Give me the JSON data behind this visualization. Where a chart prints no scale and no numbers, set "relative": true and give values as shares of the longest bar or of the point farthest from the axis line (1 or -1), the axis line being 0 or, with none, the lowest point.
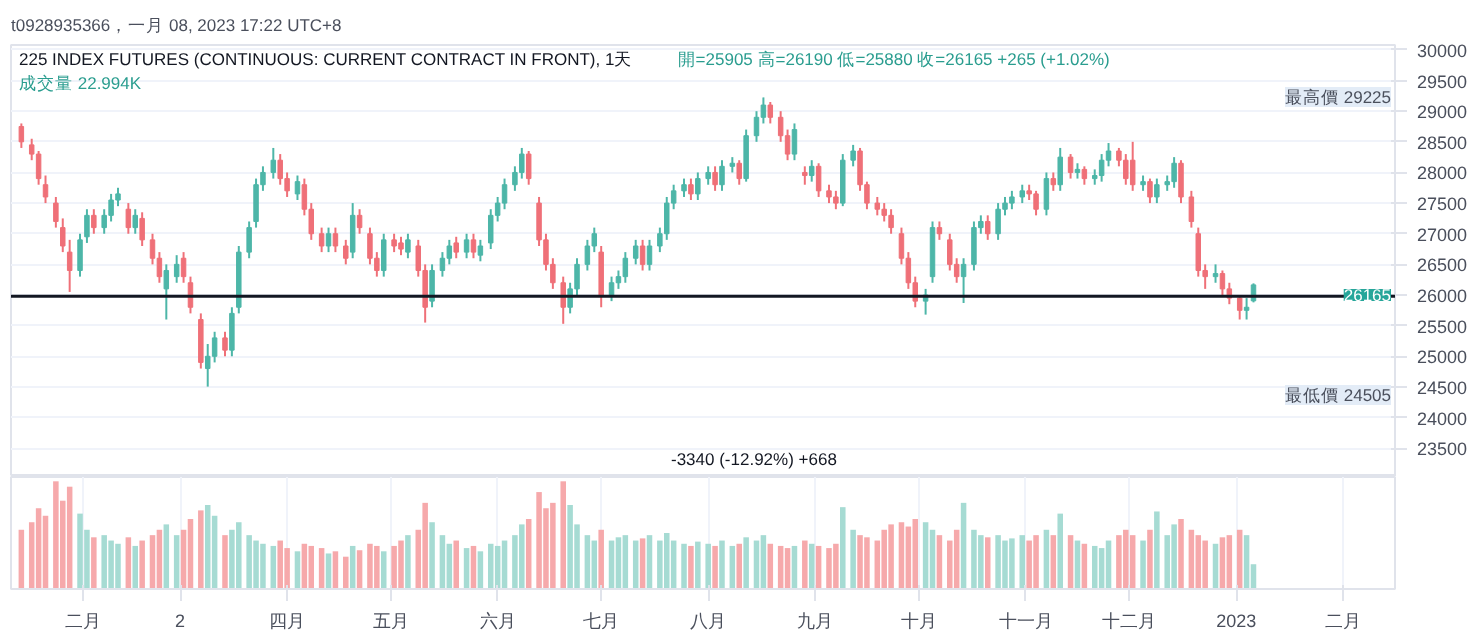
{
  "chart_data": [
    {
      "type": "candlestick",
      "title": "225 INDEX FUTURES (CONTINUOUS: CURRENT CONTRACT IN FRONT), 1天",
      "subtitle": "開=25905 高=26190 低=25880 收=26165 +265 (+1.02%)",
      "annotations": [
        "t0928935366，一月 08, 2023 17:22 UTC+8",
        "成交量 22.994K",
        "最高價 29225",
        "最低價 24505",
        "26165",
        "-3340 (-12.92%) +668"
      ],
      "x": [
        "2022-01-14",
        "2022-01-17",
        "2022-01-19",
        "2022-01-21",
        "2022-01-24",
        "2022-01-26",
        "2022-01-28",
        "2022-01-31",
        "2022-02-02",
        "2022-02-04",
        "2022-02-07",
        "2022-02-09",
        "2022-02-11",
        "2022-02-14",
        "2022-02-16",
        "2022-02-18",
        "2022-02-21",
        "2022-02-23",
        "2022-02-25",
        "2022-02-28",
        "2022-03-02",
        "2022-03-04",
        "2022-03-07",
        "2022-03-09",
        "2022-03-11",
        "2022-03-14",
        "2022-03-16",
        "2022-03-18",
        "2022-03-21",
        "2022-03-23",
        "2022-03-25",
        "2022-03-28",
        "2022-03-30",
        "2022-04-01",
        "2022-04-04",
        "2022-04-06",
        "2022-04-08",
        "2022-04-11",
        "2022-04-13",
        "2022-04-15",
        "2022-04-18",
        "2022-04-20",
        "2022-04-22",
        "2022-04-25",
        "2022-04-27",
        "2022-04-29",
        "2022-05-02",
        "2022-05-04",
        "2022-05-06",
        "2022-05-09",
        "2022-05-11",
        "2022-05-13",
        "2022-05-16",
        "2022-05-18",
        "2022-05-20",
        "2022-05-23",
        "2022-05-25",
        "2022-05-27",
        "2022-05-30",
        "2022-06-01",
        "2022-06-03",
        "2022-06-06",
        "2022-06-08",
        "2022-06-10",
        "2022-06-13",
        "2022-06-15",
        "2022-06-17",
        "2022-06-20",
        "2022-06-22",
        "2022-06-24",
        "2022-06-27",
        "2022-06-29",
        "2022-07-01",
        "2022-07-04",
        "2022-07-06",
        "2022-07-08",
        "2022-07-11",
        "2022-07-13",
        "2022-07-15",
        "2022-07-18",
        "2022-07-20",
        "2022-07-22",
        "2022-07-25",
        "2022-07-27",
        "2022-07-29",
        "2022-08-01",
        "2022-08-03",
        "2022-08-05",
        "2022-08-08",
        "2022-08-10",
        "2022-08-12",
        "2022-08-15",
        "2022-08-17",
        "2022-08-19",
        "2022-08-22",
        "2022-08-24",
        "2022-08-26",
        "2022-08-29",
        "2022-08-31",
        "2022-09-02",
        "2022-09-05",
        "2022-09-07",
        "2022-09-09",
        "2022-09-12",
        "2022-09-14",
        "2022-09-16",
        "2022-09-19",
        "2022-09-21",
        "2022-09-23",
        "2022-09-26",
        "2022-09-28",
        "2022-09-30",
        "2022-10-03",
        "2022-10-05",
        "2022-10-07",
        "2022-10-10",
        "2022-10-12",
        "2022-10-14",
        "2022-10-17",
        "2022-10-19",
        "2022-10-21",
        "2022-10-24",
        "2022-10-26",
        "2022-10-28",
        "2022-10-31",
        "2022-11-02",
        "2022-11-04",
        "2022-11-07",
        "2022-11-09",
        "2022-11-11",
        "2022-11-14",
        "2022-11-16",
        "2022-11-18",
        "2022-11-21",
        "2022-11-23",
        "2022-11-25",
        "2022-11-28",
        "2022-11-30",
        "2022-12-02",
        "2022-12-05",
        "2022-12-07",
        "2022-12-09",
        "2022-12-12",
        "2022-12-14",
        "2022-12-16",
        "2022-12-19",
        "2022-12-21",
        "2022-12-23",
        "2022-12-26",
        "2022-12-28",
        "2022-12-30",
        "2023-01-02",
        "2023-01-04",
        "2023-01-06"
      ],
      "xlim": [
        "2022-01-11",
        "2023-02-16"
      ],
      "ylim": [
        23030,
        30080
      ],
      "yticks": [
        23500,
        24000,
        24500,
        25000,
        25500,
        26000,
        26500,
        27000,
        27500,
        28000,
        28500,
        29000,
        29500,
        30000
      ],
      "grid": "y",
      "tick_labels": "y",
      "ref_lines": [
        {
          "axis": "y",
          "value": 25980,
          "color": "#131722"
        }
      ],
      "ohlc": [
        [
          28750,
          28800,
          28400,
          28500
        ],
        [
          28450,
          28550,
          28200,
          28300
        ],
        [
          28300,
          28350,
          27800,
          27900
        ],
        [
          27800,
          27950,
          27500,
          27600
        ],
        [
          27500,
          27600,
          27100,
          27200
        ],
        [
          27100,
          27250,
          26700,
          26800
        ],
        [
          26700,
          26900,
          26050,
          26400
        ],
        [
          26400,
          27000,
          26300,
          26900
        ],
        [
          26950,
          27400,
          26850,
          27300
        ],
        [
          27300,
          27400,
          27000,
          27100
        ],
        [
          27100,
          27400,
          27000,
          27300
        ],
        [
          27300,
          27650,
          27200,
          27550
        ],
        [
          27550,
          27750,
          27450,
          27650
        ],
        [
          27400,
          27500,
          27000,
          27100
        ],
        [
          27100,
          27400,
          27000,
          27300
        ],
        [
          27250,
          27350,
          26800,
          26900
        ],
        [
          26900,
          27000,
          26500,
          26600
        ],
        [
          26600,
          26700,
          26200,
          26300
        ],
        [
          26100,
          26500,
          25600,
          26400
        ],
        [
          26300,
          26650,
          26200,
          26500
        ],
        [
          26600,
          26700,
          26200,
          26300
        ],
        [
          26200,
          26300,
          25700,
          25800
        ],
        [
          25600,
          25700,
          24800,
          24900
        ],
        [
          24800,
          25200,
          24505,
          25000
        ],
        [
          25000,
          25400,
          24900,
          25300
        ],
        [
          25300,
          25400,
          25000,
          25100
        ],
        [
          25100,
          25800,
          25000,
          25700
        ],
        [
          25800,
          26800,
          25700,
          26700
        ],
        [
          26700,
          27200,
          26600,
          27100
        ],
        [
          27200,
          27900,
          27100,
          27800
        ],
        [
          27800,
          28100,
          27700,
          28000
        ],
        [
          28000,
          28400,
          27900,
          28200
        ],
        [
          28200,
          28300,
          27800,
          27900
        ],
        [
          27900,
          28000,
          27600,
          27700
        ],
        [
          27650,
          27950,
          27550,
          27850
        ],
        [
          27800,
          27900,
          27300,
          27400
        ],
        [
          27400,
          27500,
          26900,
          27000
        ],
        [
          27000,
          27100,
          26700,
          26800
        ],
        [
          26800,
          27100,
          26700,
          27000
        ],
        [
          27000,
          27100,
          26700,
          26800
        ],
        [
          26800,
          26900,
          26500,
          26600
        ],
        [
          26700,
          27500,
          26600,
          27300
        ],
        [
          27300,
          27400,
          27000,
          27100
        ],
        [
          27000,
          27100,
          26500,
          26600
        ],
        [
          26600,
          26700,
          26300,
          26400
        ],
        [
          26400,
          27000,
          26300,
          26900
        ],
        [
          26900,
          27000,
          26700,
          26800
        ],
        [
          26850,
          26950,
          26650,
          26750
        ],
        [
          26700,
          27000,
          26600,
          26900
        ],
        [
          26800,
          26900,
          26300,
          26400
        ],
        [
          26400,
          26500,
          25550,
          25800
        ],
        [
          25900,
          26500,
          25800,
          26400
        ],
        [
          26400,
          26700,
          26300,
          26600
        ],
        [
          26600,
          26900,
          26500,
          26800
        ],
        [
          26850,
          26950,
          26600,
          26700
        ],
        [
          26700,
          27000,
          26600,
          26900
        ],
        [
          26900,
          27000,
          26600,
          26700
        ],
        [
          26650,
          26900,
          26550,
          26800
        ],
        [
          26850,
          27400,
          26750,
          27300
        ],
        [
          27300,
          27600,
          27200,
          27500
        ],
        [
          27500,
          27900,
          27400,
          27800
        ],
        [
          27800,
          28100,
          27700,
          28000
        ],
        [
          28000,
          28400,
          27900,
          28300
        ],
        [
          28300,
          28350,
          27800,
          27900
        ],
        [
          27500,
          27600,
          26800,
          26900
        ],
        [
          26900,
          27000,
          26400,
          26500
        ],
        [
          26500,
          26600,
          26100,
          26200
        ],
        [
          26200,
          26300,
          25530,
          25800
        ],
        [
          25800,
          26200,
          25700,
          26100
        ],
        [
          26100,
          26600,
          26000,
          26500
        ],
        [
          26500,
          26900,
          26400,
          26800
        ],
        [
          26800,
          27100,
          26700,
          27000
        ],
        [
          26700,
          26800,
          25800,
          26000
        ],
        [
          26000,
          26300,
          25900,
          26200
        ],
        [
          26200,
          26400,
          26100,
          26300
        ],
        [
          26300,
          26700,
          26200,
          26600
        ],
        [
          26600,
          26900,
          26500,
          26800
        ],
        [
          26800,
          26900,
          26400,
          26500
        ],
        [
          26500,
          26900,
          26400,
          26800
        ],
        [
          26800,
          27100,
          26700,
          27000
        ],
        [
          27000,
          27600,
          26900,
          27500
        ],
        [
          27500,
          27800,
          27400,
          27700
        ],
        [
          27700,
          27900,
          27600,
          27800
        ],
        [
          27800,
          27900,
          27550,
          27650
        ],
        [
          27650,
          28000,
          27550,
          27900
        ],
        [
          27900,
          28100,
          27800,
          28000
        ],
        [
          28000,
          28100,
          27700,
          27800
        ],
        [
          27800,
          28200,
          27700,
          28100
        ],
        [
          28100,
          28250,
          28000,
          28150
        ],
        [
          28150,
          28200,
          27800,
          27900
        ],
        [
          27900,
          28700,
          27850,
          28600
        ],
        [
          28600,
          29000,
          28500,
          28900
        ],
        [
          28900,
          29225,
          28800,
          29100
        ],
        [
          29100,
          29150,
          28800,
          28900
        ],
        [
          28900,
          29000,
          28500,
          28600
        ],
        [
          28600,
          28700,
          28200,
          28300
        ],
        [
          28300,
          28800,
          28200,
          28700
        ],
        [
          28000,
          28100,
          27800,
          27950
        ],
        [
          27950,
          28200,
          27850,
          28100
        ],
        [
          28100,
          28150,
          27600,
          27700
        ],
        [
          27700,
          27800,
          27500,
          27600
        ],
        [
          27600,
          27700,
          27400,
          27500
        ],
        [
          27500,
          28300,
          27450,
          28200
        ],
        [
          28200,
          28450,
          28100,
          28350
        ],
        [
          28350,
          28400,
          27700,
          27800
        ],
        [
          27800,
          27850,
          27400,
          27500
        ],
        [
          27500,
          27600,
          27300,
          27400
        ],
        [
          27400,
          27500,
          27200,
          27300
        ],
        [
          27300,
          27400,
          27000,
          27100
        ],
        [
          27000,
          27100,
          26500,
          26600
        ],
        [
          26600,
          26700,
          26100,
          26200
        ],
        [
          26200,
          26300,
          25800,
          25900
        ],
        [
          25900,
          26100,
          25680,
          26000
        ],
        [
          26300,
          27200,
          26200,
          27100
        ],
        [
          27100,
          27200,
          26900,
          27000
        ],
        [
          26900,
          27000,
          26400,
          26500
        ],
        [
          26500,
          26600,
          26200,
          26300
        ],
        [
          26300,
          26600,
          25870,
          26500
        ],
        [
          26500,
          27200,
          26400,
          27100
        ],
        [
          27100,
          27300,
          27000,
          27200
        ],
        [
          27200,
          27300,
          26900,
          27000
        ],
        [
          27000,
          27500,
          26900,
          27400
        ],
        [
          27400,
          27600,
          27300,
          27500
        ],
        [
          27500,
          27700,
          27400,
          27600
        ],
        [
          27600,
          27800,
          27500,
          27700
        ],
        [
          27700,
          27800,
          27550,
          27650
        ],
        [
          27650,
          27700,
          27300,
          27400
        ],
        [
          27400,
          28000,
          27300,
          27900
        ],
        [
          27900,
          28000,
          27700,
          27800
        ],
        [
          27800,
          28400,
          27700,
          28250
        ],
        [
          28250,
          28300,
          27900,
          28000
        ],
        [
          28000,
          28150,
          27900,
          28050
        ],
        [
          28050,
          28100,
          27800,
          27900
        ],
        [
          27900,
          28050,
          27800,
          27950
        ],
        [
          27950,
          28300,
          27850,
          28200
        ],
        [
          28200,
          28480,
          28100,
          28350
        ],
        [
          28350,
          28400,
          28100,
          28200
        ],
        [
          28200,
          28300,
          27800,
          27900
        ],
        [
          28200,
          28500,
          27700,
          27800
        ],
        [
          27800,
          27950,
          27700,
          27850
        ],
        [
          27850,
          27900,
          27500,
          27600
        ],
        [
          27600,
          27900,
          27500,
          27800
        ],
        [
          27800,
          27950,
          27700,
          27850
        ],
        [
          27850,
          28250,
          27750,
          28150
        ],
        [
          28150,
          28200,
          27500,
          27600
        ],
        [
          27600,
          27700,
          27100,
          27200
        ],
        [
          27000,
          27100,
          26300,
          26400
        ],
        [
          26400,
          26500,
          26100,
          26300
        ],
        [
          26300,
          26500,
          26200,
          26350
        ],
        [
          26350,
          26400,
          26000,
          26100
        ],
        [
          26100,
          26200,
          25850,
          25950
        ],
        [
          25950,
          26000,
          25600,
          25750
        ],
        [
          25750,
          25950,
          25600,
          25800
        ],
        [
          25905,
          26190,
          25880,
          26165
        ]
      ],
      "colors": [
        "#ef7078",
        "#ef7078",
        "#ef7078",
        "#ef7078",
        "#ef7078",
        "#ef7078",
        "#ef7078",
        "#4db6a8",
        "#4db6a8",
        "#ef7078",
        "#4db6a8",
        "#4db6a8",
        "#4db6a8",
        "#ef7078",
        "#4db6a8",
        "#ef7078",
        "#ef7078",
        "#ef7078",
        "#4db6a8",
        "#4db6a8",
        "#ef7078",
        "#ef7078",
        "#ef7078",
        "#4db6a8",
        "#4db6a8",
        "#ef7078",
        "#4db6a8",
        "#4db6a8",
        "#4db6a8",
        "#4db6a8",
        "#4db6a8",
        "#4db6a8",
        "#ef7078",
        "#ef7078",
        "#4db6a8",
        "#ef7078",
        "#ef7078",
        "#ef7078",
        "#4db6a8",
        "#ef7078",
        "#ef7078",
        "#4db6a8",
        "#ef7078",
        "#ef7078",
        "#ef7078",
        "#4db6a8",
        "#ef7078",
        "#ef7078",
        "#4db6a8",
        "#ef7078",
        "#ef7078",
        "#4db6a8",
        "#4db6a8",
        "#4db6a8",
        "#ef7078",
        "#4db6a8",
        "#ef7078",
        "#4db6a8",
        "#4db6a8",
        "#4db6a8",
        "#4db6a8",
        "#4db6a8",
        "#4db6a8",
        "#ef7078",
        "#ef7078",
        "#ef7078",
        "#ef7078",
        "#ef7078",
        "#4db6a8",
        "#4db6a8",
        "#4db6a8",
        "#4db6a8",
        "#ef7078",
        "#4db6a8",
        "#4db6a8",
        "#4db6a8",
        "#4db6a8",
        "#ef7078",
        "#4db6a8",
        "#4db6a8",
        "#4db6a8",
        "#4db6a8",
        "#4db6a8",
        "#ef7078",
        "#4db6a8",
        "#4db6a8",
        "#ef7078",
        "#4db6a8",
        "#4db6a8",
        "#ef7078",
        "#4db6a8",
        "#4db6a8",
        "#4db6a8",
        "#ef7078",
        "#ef7078",
        "#ef7078",
        "#4db6a8",
        "#ef7078",
        "#4db6a8",
        "#ef7078",
        "#ef7078",
        "#ef7078",
        "#4db6a8",
        "#4db6a8",
        "#ef7078",
        "#ef7078",
        "#ef7078",
        "#ef7078",
        "#ef7078",
        "#ef7078",
        "#ef7078",
        "#ef7078",
        "#4db6a8",
        "#4db6a8",
        "#ef7078",
        "#ef7078",
        "#ef7078",
        "#4db6a8",
        "#4db6a8",
        "#4db6a8",
        "#ef7078",
        "#4db6a8",
        "#4db6a8",
        "#4db6a8",
        "#4db6a8",
        "#ef7078",
        "#ef7078",
        "#4db6a8",
        "#ef7078",
        "#4db6a8",
        "#ef7078",
        "#4db6a8",
        "#ef7078",
        "#4db6a8",
        "#4db6a8",
        "#4db6a8",
        "#ef7078",
        "#ef7078",
        "#ef7078",
        "#4db6a8",
        "#ef7078",
        "#4db6a8",
        "#4db6a8",
        "#4db6a8",
        "#ef7078",
        "#ef7078",
        "#ef7078",
        "#ef7078",
        "#4db6a8",
        "#ef7078",
        "#ef7078",
        "#ef7078",
        "#4db6a8",
        "#4db6a8"
      ]
    },
    {
      "type": "bar",
      "relative": true,
      "grid": "x",
      "tick_labels": "x",
      "x": [
        "2022-01-14",
        "2022-01-17",
        "2022-01-19",
        "2022-01-21",
        "2022-01-24",
        "2022-01-26",
        "2022-01-28",
        "2022-01-31",
        "2022-02-02",
        "2022-02-04",
        "2022-02-07",
        "2022-02-09",
        "2022-02-11",
        "2022-02-14",
        "2022-02-16",
        "2022-02-18",
        "2022-02-21",
        "2022-02-23",
        "2022-02-25",
        "2022-02-28",
        "2022-03-02",
        "2022-03-04",
        "2022-03-07",
        "2022-03-09",
        "2022-03-11",
        "2022-03-14",
        "2022-03-16",
        "2022-03-18",
        "2022-03-21",
        "2022-03-23",
        "2022-03-25",
        "2022-03-28",
        "2022-03-30",
        "2022-04-01",
        "2022-04-04",
        "2022-04-06",
        "2022-04-08",
        "2022-04-11",
        "2022-04-13",
        "2022-04-15",
        "2022-04-18",
        "2022-04-20",
        "2022-04-22",
        "2022-04-25",
        "2022-04-27",
        "2022-04-29",
        "2022-05-02",
        "2022-05-04",
        "2022-05-06",
        "2022-05-09",
        "2022-05-11",
        "2022-05-13",
        "2022-05-16",
        "2022-05-18",
        "2022-05-20",
        "2022-05-23",
        "2022-05-25",
        "2022-05-27",
        "2022-05-30",
        "2022-06-01",
        "2022-06-03",
        "2022-06-06",
        "2022-06-08",
        "2022-06-10",
        "2022-06-13",
        "2022-06-15",
        "2022-06-17",
        "2022-06-20",
        "2022-06-22",
        "2022-06-24",
        "2022-06-27",
        "2022-06-29",
        "2022-07-01",
        "2022-07-04",
        "2022-07-06",
        "2022-07-08",
        "2022-07-11",
        "2022-07-13",
        "2022-07-15",
        "2022-07-18",
        "2022-07-20",
        "2022-07-22",
        "2022-07-25",
        "2022-07-27",
        "2022-07-29",
        "2022-08-01",
        "2022-08-03",
        "2022-08-05",
        "2022-08-08",
        "2022-08-10",
        "2022-08-12",
        "2022-08-15",
        "2022-08-17",
        "2022-08-19",
        "2022-08-22",
        "2022-08-24",
        "2022-08-26",
        "2022-08-29",
        "2022-08-31",
        "2022-09-02",
        "2022-09-05",
        "2022-09-07",
        "2022-09-09",
        "2022-09-12",
        "2022-09-14",
        "2022-09-16",
        "2022-09-19",
        "2022-09-21",
        "2022-09-23",
        "2022-09-26",
        "2022-09-28",
        "2022-09-30",
        "2022-10-03",
        "2022-10-05",
        "2022-10-07",
        "2022-10-10",
        "2022-10-12",
        "2022-10-14",
        "2022-10-17",
        "2022-10-19",
        "2022-10-21",
        "2022-10-24",
        "2022-10-26",
        "2022-10-28",
        "2022-10-31",
        "2022-11-02",
        "2022-11-04",
        "2022-11-07",
        "2022-11-09",
        "2022-11-11",
        "2022-11-14",
        "2022-11-16",
        "2022-11-18",
        "2022-11-21",
        "2022-11-23",
        "2022-11-25",
        "2022-11-28",
        "2022-11-30",
        "2022-12-02",
        "2022-12-05",
        "2022-12-07",
        "2022-12-09",
        "2022-12-12",
        "2022-12-14",
        "2022-12-16",
        "2022-12-19",
        "2022-12-21",
        "2022-12-23",
        "2022-12-26",
        "2022-12-28",
        "2022-12-30",
        "2023-01-02",
        "2023-01-04",
        "2023-01-06"
      ],
      "xlim": [
        "2022-01-11",
        "2023-02-16"
      ],
      "xticks": [
        {
          "value": "2022-02-01",
          "label": "二月"
        },
        {
          "value": "2022-03-01",
          "label": "2"
        },
        {
          "value": "2022-04-01",
          "label": "四月"
        },
        {
          "value": "2022-05-01",
          "label": "五月"
        },
        {
          "value": "2022-06-01",
          "label": "六月"
        },
        {
          "value": "2022-07-01",
          "label": "七月"
        },
        {
          "value": "2022-08-01",
          "label": "八月"
        },
        {
          "value": "2022-09-01",
          "label": "九月"
        },
        {
          "value": "2022-10-01",
          "label": "十月"
        },
        {
          "value": "2022-11-01",
          "label": "十一月"
        },
        {
          "value": "2022-12-01",
          "label": "十二月"
        },
        {
          "value": "2023-01-01",
          "label": "2023"
        },
        {
          "value": "2023-02-01",
          "label": "二月"
        }
      ],
      "values": [
        0.55,
        0.62,
        0.75,
        0.68,
        1.0,
        0.82,
        0.95,
        0.7,
        0.55,
        0.48,
        0.5,
        0.45,
        0.42,
        0.48,
        0.4,
        0.45,
        0.5,
        0.55,
        0.6,
        0.5,
        0.55,
        0.65,
        0.73,
        0.78,
        0.68,
        0.5,
        0.55,
        0.62,
        0.5,
        0.45,
        0.42,
        0.4,
        0.45,
        0.38,
        0.35,
        0.42,
        0.4,
        0.38,
        0.33,
        0.35,
        0.3,
        0.4,
        0.36,
        0.42,
        0.4,
        0.35,
        0.4,
        0.45,
        0.5,
        0.55,
        0.8,
        0.62,
        0.5,
        0.42,
        0.45,
        0.38,
        0.4,
        0.35,
        0.42,
        0.4,
        0.45,
        0.5,
        0.6,
        0.65,
        0.9,
        0.75,
        0.8,
        1.0,
        0.78,
        0.6,
        0.5,
        0.45,
        0.55,
        0.45,
        0.48,
        0.5,
        0.45,
        0.47,
        0.5,
        0.45,
        0.52,
        0.45,
        0.42,
        0.4,
        0.44,
        0.42,
        0.4,
        0.45,
        0.4,
        0.42,
        0.48,
        0.45,
        0.5,
        0.42,
        0.4,
        0.38,
        0.4,
        0.45,
        0.42,
        0.4,
        0.38,
        0.42,
        0.76,
        0.55,
        0.5,
        0.48,
        0.45,
        0.55,
        0.6,
        0.62,
        0.58,
        0.65,
        0.62,
        0.55,
        0.5,
        0.45,
        0.55,
        0.8,
        0.55,
        0.5,
        0.48,
        0.5,
        0.45,
        0.47,
        0.5,
        0.45,
        0.5,
        0.55,
        0.5,
        0.7,
        0.5,
        0.45,
        0.42,
        0.4,
        0.38,
        0.45,
        0.5,
        0.55,
        0.5,
        0.45,
        0.55,
        0.72,
        0.5,
        0.6,
        0.65,
        0.55,
        0.5,
        0.45,
        0.42,
        0.48,
        0.5,
        0.55,
        0.5,
        0.23
      ],
      "colors": [
        "#f6a9ab",
        "#f6a9ab",
        "#f6a9ab",
        "#f6a9ab",
        "#f6a9ab",
        "#f6a9ab",
        "#f6a9ab",
        "#a6dbd3",
        "#a6dbd3",
        "#f6a9ab",
        "#a6dbd3",
        "#a6dbd3",
        "#a6dbd3",
        "#f6a9ab",
        "#a6dbd3",
        "#f6a9ab",
        "#f6a9ab",
        "#f6a9ab",
        "#a6dbd3",
        "#a6dbd3",
        "#f6a9ab",
        "#f6a9ab",
        "#f6a9ab",
        "#a6dbd3",
        "#a6dbd3",
        "#f6a9ab",
        "#a6dbd3",
        "#a6dbd3",
        "#a6dbd3",
        "#a6dbd3",
        "#a6dbd3",
        "#a6dbd3",
        "#f6a9ab",
        "#f6a9ab",
        "#a6dbd3",
        "#f6a9ab",
        "#f6a9ab",
        "#f6a9ab",
        "#a6dbd3",
        "#f6a9ab",
        "#f6a9ab",
        "#a6dbd3",
        "#f6a9ab",
        "#f6a9ab",
        "#f6a9ab",
        "#a6dbd3",
        "#f6a9ab",
        "#f6a9ab",
        "#a6dbd3",
        "#f6a9ab",
        "#f6a9ab",
        "#a6dbd3",
        "#a6dbd3",
        "#a6dbd3",
        "#f6a9ab",
        "#a6dbd3",
        "#f6a9ab",
        "#a6dbd3",
        "#a6dbd3",
        "#a6dbd3",
        "#a6dbd3",
        "#a6dbd3",
        "#a6dbd3",
        "#f6a9ab",
        "#f6a9ab",
        "#f6a9ab",
        "#f6a9ab",
        "#f6a9ab",
        "#a6dbd3",
        "#a6dbd3",
        "#a6dbd3",
        "#a6dbd3",
        "#f6a9ab",
        "#a6dbd3",
        "#a6dbd3",
        "#a6dbd3",
        "#a6dbd3",
        "#f6a9ab",
        "#a6dbd3",
        "#a6dbd3",
        "#a6dbd3",
        "#a6dbd3",
        "#a6dbd3",
        "#f6a9ab",
        "#a6dbd3",
        "#a6dbd3",
        "#f6a9ab",
        "#a6dbd3",
        "#a6dbd3",
        "#f6a9ab",
        "#a6dbd3",
        "#a6dbd3",
        "#a6dbd3",
        "#f6a9ab",
        "#f6a9ab",
        "#f6a9ab",
        "#a6dbd3",
        "#f6a9ab",
        "#a6dbd3",
        "#f6a9ab",
        "#f6a9ab",
        "#f6a9ab",
        "#a6dbd3",
        "#a6dbd3",
        "#f6a9ab",
        "#f6a9ab",
        "#f6a9ab",
        "#f6a9ab",
        "#f6a9ab",
        "#f6a9ab",
        "#f6a9ab",
        "#f6a9ab",
        "#a6dbd3",
        "#a6dbd3",
        "#f6a9ab",
        "#f6a9ab",
        "#f6a9ab",
        "#a6dbd3",
        "#a6dbd3",
        "#a6dbd3",
        "#f6a9ab",
        "#a6dbd3",
        "#a6dbd3",
        "#a6dbd3",
        "#a6dbd3",
        "#f6a9ab",
        "#f6a9ab",
        "#a6dbd3",
        "#f6a9ab",
        "#a6dbd3",
        "#f6a9ab",
        "#a6dbd3",
        "#f6a9ab",
        "#a6dbd3",
        "#a6dbd3",
        "#a6dbd3",
        "#f6a9ab",
        "#f6a9ab",
        "#f6a9ab",
        "#a6dbd3",
        "#f6a9ab",
        "#a6dbd3",
        "#a6dbd3",
        "#a6dbd3",
        "#f6a9ab",
        "#f6a9ab",
        "#f6a9ab",
        "#f6a9ab",
        "#a6dbd3",
        "#f6a9ab",
        "#f6a9ab",
        "#f6a9ab",
        "#a6dbd3",
        "#a6dbd3"
      ]
    }
  ]
}
